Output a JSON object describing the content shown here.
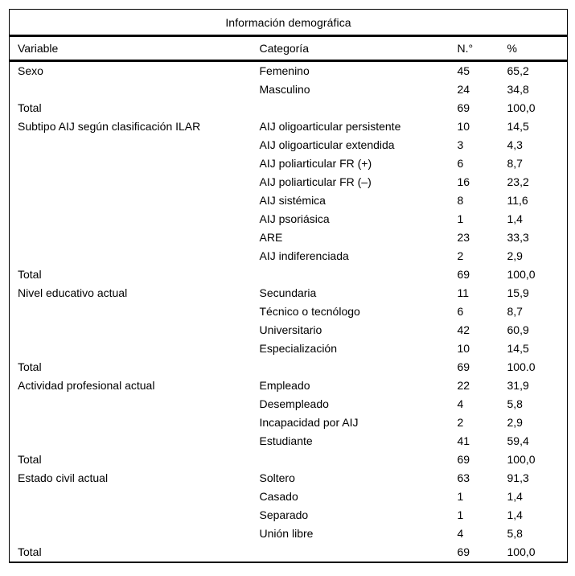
{
  "table": {
    "title": "Información demográfica",
    "columns": {
      "variable": "Variable",
      "categoria": "Categoría",
      "n": "N.°",
      "pct": "%"
    },
    "rows": [
      {
        "variable": "Sexo",
        "categoria": "Femenino",
        "n": "45",
        "pct": "65,2"
      },
      {
        "variable": "",
        "categoria": "Masculino",
        "n": "24",
        "pct": "34,8"
      },
      {
        "variable": "Total",
        "categoria": "",
        "n": "69",
        "pct": "100,0"
      },
      {
        "variable": "Subtipo AIJ según clasificación ILAR",
        "categoria": "AIJ oligoarticular persistente",
        "n": "10",
        "pct": "14,5"
      },
      {
        "variable": "",
        "categoria": "AIJ oligoarticular extendida",
        "n": "3",
        "pct": "4,3"
      },
      {
        "variable": "",
        "categoria": "AIJ poliarticular FR (+)",
        "n": "6",
        "pct": "8,7"
      },
      {
        "variable": "",
        "categoria": "AIJ poliarticular FR (–)",
        "n": "16",
        "pct": "23,2"
      },
      {
        "variable": "",
        "categoria": "AIJ sistémica",
        "n": "8",
        "pct": "11,6"
      },
      {
        "variable": "",
        "categoria": "AIJ psoriásica",
        "n": "1",
        "pct": "1,4"
      },
      {
        "variable": "",
        "categoria": "ARE",
        "n": "23",
        "pct": "33,3"
      },
      {
        "variable": "",
        "categoria": "AIJ indiferenciada",
        "n": "2",
        "pct": "2,9"
      },
      {
        "variable": "Total",
        "categoria": "",
        "n": "69",
        "pct": "100,0"
      },
      {
        "variable": "Nivel educativo actual",
        "categoria": "Secundaria",
        "n": "11",
        "pct": "15,9"
      },
      {
        "variable": "",
        "categoria": "Técnico o tecnólogo",
        "n": "6",
        "pct": "8,7"
      },
      {
        "variable": "",
        "categoria": "Universitario",
        "n": "42",
        "pct": "60,9"
      },
      {
        "variable": "",
        "categoria": "Especialización",
        "n": "10",
        "pct": "14,5"
      },
      {
        "variable": "Total",
        "categoria": "",
        "n": "69",
        "pct": "100.0"
      },
      {
        "variable": "Actividad profesional actual",
        "categoria": "Empleado",
        "n": "22",
        "pct": "31,9"
      },
      {
        "variable": "",
        "categoria": "Desempleado",
        "n": "4",
        "pct": "5,8"
      },
      {
        "variable": "",
        "categoria": "Incapacidad por AIJ",
        "n": "2",
        "pct": "2,9"
      },
      {
        "variable": "",
        "categoria": "Estudiante",
        "n": "41",
        "pct": "59,4"
      },
      {
        "variable": "Total",
        "categoria": "",
        "n": "69",
        "pct": "100,0"
      },
      {
        "variable": "Estado civil actual",
        "categoria": "Soltero",
        "n": "63",
        "pct": "91,3"
      },
      {
        "variable": "",
        "categoria": "Casado",
        "n": "1",
        "pct": "1,4"
      },
      {
        "variable": "",
        "categoria": "Separado",
        "n": "1",
        "pct": "1,4"
      },
      {
        "variable": "",
        "categoria": "Unión libre",
        "n": "4",
        "pct": "5,8"
      },
      {
        "variable": "Total",
        "categoria": "",
        "n": "69",
        "pct": "100,0"
      }
    ]
  }
}
